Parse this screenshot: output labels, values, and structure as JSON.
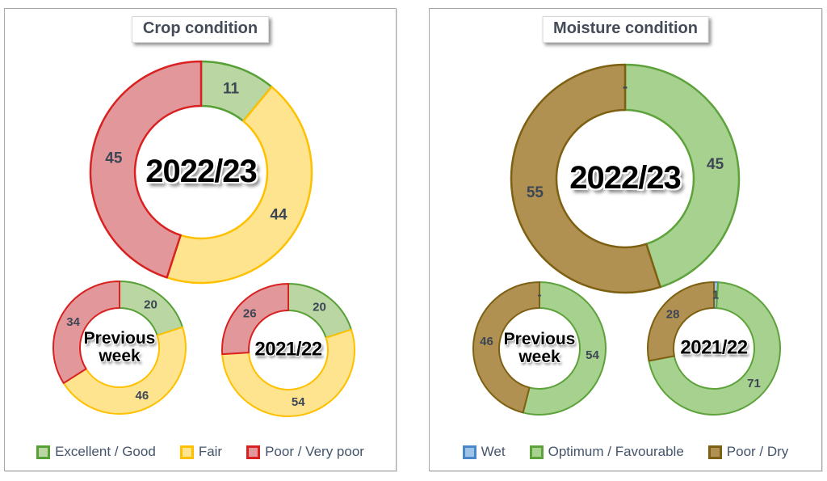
{
  "chart_data": [
    {
      "type": "pie",
      "variant": "donut",
      "title": "Crop condition",
      "legend_position": "bottom",
      "categories": [
        "Excellent / Good",
        "Fair",
        "Poor / Very poor"
      ],
      "colors": [
        {
          "fill": "#bad7a3",
          "stroke": "#56a035"
        },
        {
          "fill": "#ffe48f",
          "stroke": "#ffc000"
        },
        {
          "fill": "#e2989a",
          "stroke": "#d92121"
        }
      ],
      "label_color": "#3d4654",
      "donuts": [
        {
          "center_label": "2022/23",
          "values": [
            11,
            44,
            45
          ],
          "labels": [
            "11",
            "44",
            "45"
          ]
        },
        {
          "center_label": "Previous\nweek",
          "values": [
            20,
            46,
            34
          ],
          "labels": [
            "20",
            "46",
            "34"
          ]
        },
        {
          "center_label": "2021/22",
          "values": [
            20,
            54,
            26
          ],
          "labels": [
            "20",
            "54",
            "26"
          ]
        }
      ]
    },
    {
      "type": "pie",
      "variant": "donut",
      "title": "Moisture condition",
      "legend_position": "bottom",
      "categories": [
        "Wet",
        "Optimum / Favourable",
        "Poor / Dry"
      ],
      "colors": [
        {
          "fill": "#9dc3e6",
          "stroke": "#4a86c8"
        },
        {
          "fill": "#a7d18f",
          "stroke": "#5da23b"
        },
        {
          "fill": "#b09152",
          "stroke": "#7d6011"
        }
      ],
      "label_color": "#3d4654",
      "donuts": [
        {
          "center_label": "2022/23",
          "values": [
            0,
            45,
            55
          ],
          "labels": [
            "-",
            "45",
            "55"
          ]
        },
        {
          "center_label": "Previous\nweek",
          "values": [
            0,
            54,
            46
          ],
          "labels": [
            "-",
            "54",
            "46"
          ]
        },
        {
          "center_label": "2021/22",
          "values": [
            1,
            71,
            28
          ],
          "labels": [
            "1",
            "71",
            "28"
          ]
        }
      ]
    }
  ]
}
